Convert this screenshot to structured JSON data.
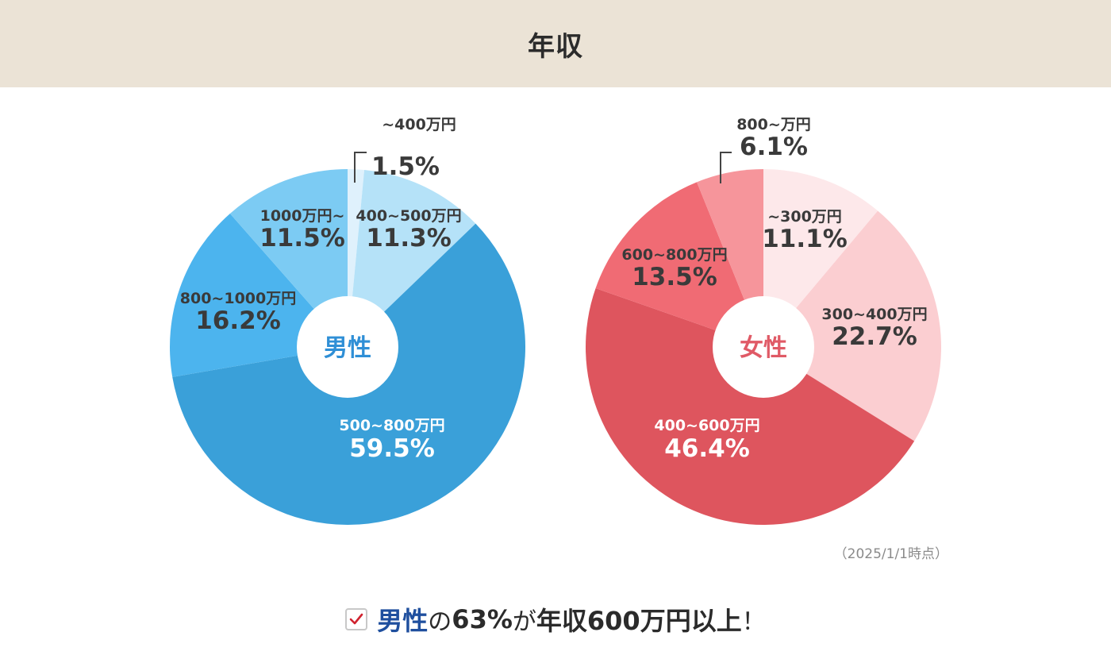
{
  "page": {
    "title": "年収"
  },
  "colors": {
    "male_center_text": "#2f8fd6",
    "female_center_text": "#e05a66"
  },
  "chart_data": [
    {
      "type": "pie",
      "id": "male",
      "center_label": "男性",
      "slices": [
        {
          "label": "~400万円",
          "value": 1.5,
          "value_label": "1.5%",
          "color": "#dff1fc"
        },
        {
          "label": "400~500万円",
          "value": 11.3,
          "value_label": "11.3%",
          "color": "#b5e2f8"
        },
        {
          "label": "500~800万円",
          "value": 59.5,
          "value_label": "59.5%",
          "color": "#3aa0d9"
        },
        {
          "label": "800~1000万円",
          "value": 16.2,
          "value_label": "16.2%",
          "color": "#4cb4ee"
        },
        {
          "label": "1000万円~",
          "value": 11.5,
          "value_label": "11.5%",
          "color": "#7ccbf3"
        }
      ]
    },
    {
      "type": "pie",
      "id": "female",
      "center_label": "女性",
      "slices": [
        {
          "label": "~300万円",
          "value": 11.1,
          "value_label": "11.1%",
          "color": "#fde8ea"
        },
        {
          "label": "300~400万円",
          "value": 22.7,
          "value_label": "22.7%",
          "color": "#fbced1"
        },
        {
          "label": "400~600万円",
          "value": 46.4,
          "value_label": "46.4%",
          "color": "#de555e"
        },
        {
          "label": "600~800万円",
          "value": 13.5,
          "value_label": "13.5%",
          "color": "#f06b74"
        },
        {
          "label": "800~万円",
          "value": 6.1,
          "value_label": "6.1%",
          "color": "#f6959b"
        }
      ]
    }
  ],
  "as_of": "（2025/1/1時点）",
  "summary": {
    "subject": "男性",
    "particle": "の",
    "percent": "63%",
    "particle2": "が",
    "statement": "年収600万円以上",
    "exclaim": "！"
  }
}
